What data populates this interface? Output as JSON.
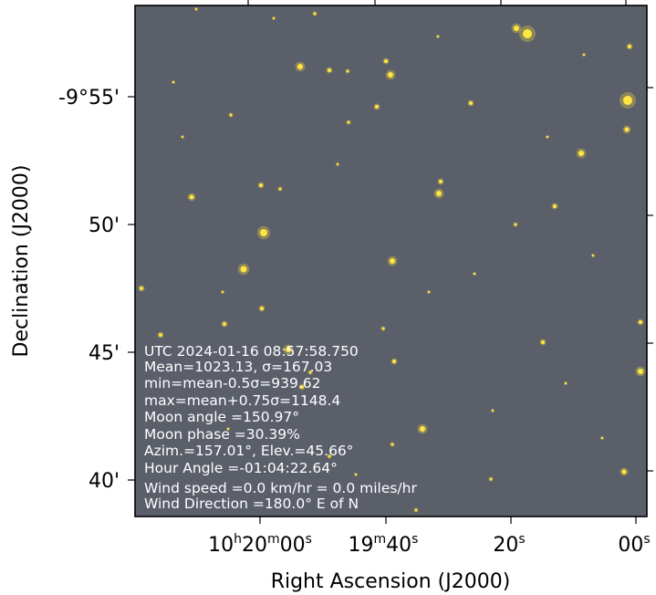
{
  "x_axis": {
    "label": "Right Ascension (J2000)",
    "ticks": [
      {
        "h": "10",
        "m": "20",
        "s": "00"
      },
      {
        "h": "",
        "m": "19",
        "s": "40"
      },
      {
        "h": "",
        "m": "",
        "s": "20"
      },
      {
        "h": "",
        "m": "",
        "s": "00"
      }
    ],
    "unit_h": "h",
    "unit_m": "m",
    "unit_s": "s"
  },
  "y_axis": {
    "label": "Declination (J2000)",
    "ticks": [
      "-9°55'",
      "50'",
      "45'",
      "40'"
    ]
  },
  "info_lines": [
    "UTC  2024-01-16  08:57:58.750",
    "Mean=1023.13,  σ=167.03",
    "min=mean-0.5σ=939.62",
    "max=mean+0.75σ=1148.4",
    "Moon angle =150.97°",
    "Moon phase =30.39%",
    "Azim.=157.01°, Elev.=45.66°",
    "Hour Angle =-01:04:22.64°",
    "Wind speed =0.0 km/hr = 0.0 miles/hr",
    "Wind Direction =180.0° E of N"
  ],
  "colors": {
    "sky_background": "#5a5f6a",
    "star": "#ffe640",
    "star_halo": "#c9b64a"
  }
}
